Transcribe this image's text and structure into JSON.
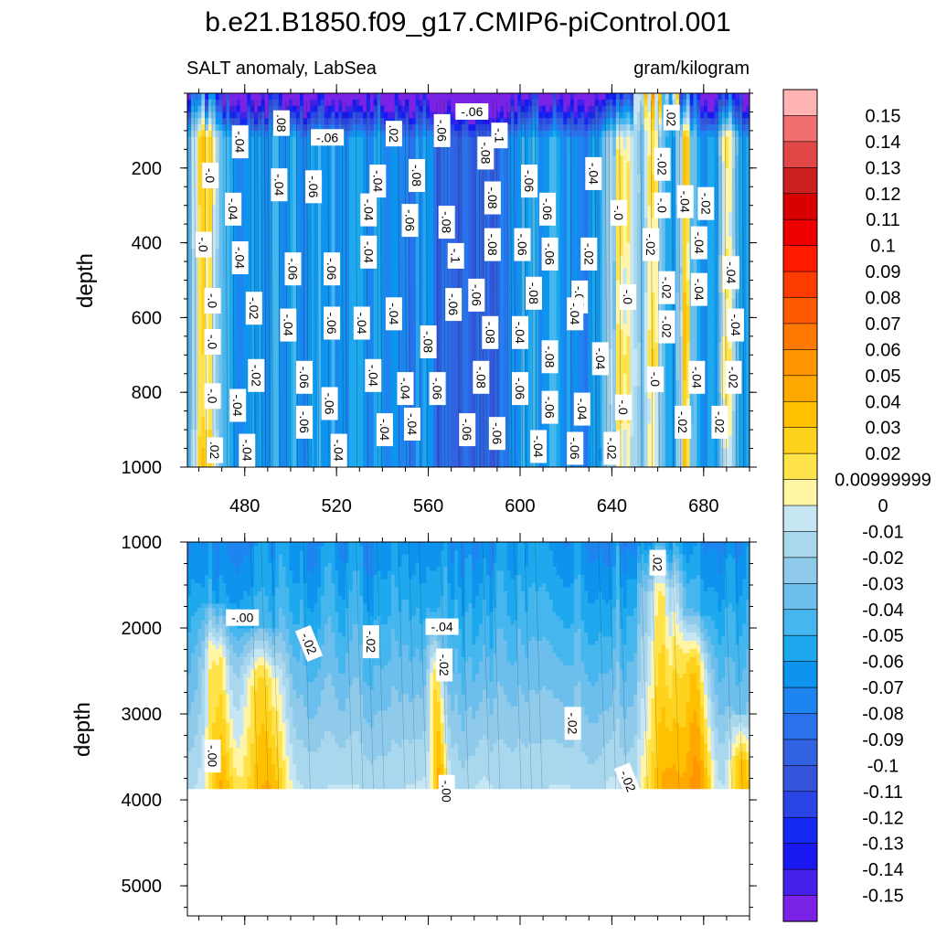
{
  "chart_data": {
    "type": "heatmap",
    "title": "b.e21.B1850.f09_g17.CMIP6-piControl.001",
    "subtitle_left": "SALT anomaly, LabSea",
    "subtitle_right": "gram/kilogram",
    "xlabel": "",
    "xlim": [
      455,
      700
    ],
    "x_ticks": [
      "480",
      "520",
      "560",
      "600",
      "640",
      "680"
    ],
    "x_tick_values": [
      480,
      520,
      560,
      600,
      640,
      680
    ],
    "panels": [
      {
        "name": "upper",
        "ylabel": "depth",
        "ylim": [
          0,
          1000
        ],
        "y_ticks": [
          "200",
          "400",
          "600",
          "800",
          "1000"
        ],
        "y_tick_values": [
          200,
          400,
          600,
          800,
          1000
        ],
        "contour_labels": [
          {
            "text": "-.06",
            "x": 579,
            "y": 49
          },
          {
            "text": ".02",
            "x": 666,
            "y": 65,
            "rot": 90
          },
          {
            "text": "-.04",
            "x": 478,
            "y": 130,
            "rot": 90
          },
          {
            "text": ".08",
            "x": 496,
            "y": 80,
            "rot": 90
          },
          {
            "text": "-.06",
            "x": 516,
            "y": 118
          },
          {
            "text": ".02",
            "x": 545,
            "y": 108,
            "rot": 90
          },
          {
            "text": "-.06",
            "x": 566,
            "y": 100,
            "rot": 90
          },
          {
            "text": "-.1",
            "x": 591,
            "y": 113,
            "rot": 90
          },
          {
            "text": "-.08",
            "x": 585,
            "y": 160,
            "rot": 90
          },
          {
            "text": "-.0",
            "x": 465,
            "y": 220,
            "rot": 90
          },
          {
            "text": "-.04",
            "x": 495,
            "y": 245,
            "rot": 90
          },
          {
            "text": "-.06",
            "x": 510,
            "y": 250,
            "rot": 90
          },
          {
            "text": "-.04",
            "x": 538,
            "y": 235,
            "rot": 90
          },
          {
            "text": "-.08",
            "x": 555,
            "y": 220,
            "rot": 90
          },
          {
            "text": "-.06",
            "x": 604,
            "y": 235,
            "rot": 90
          },
          {
            "text": "-.04",
            "x": 632,
            "y": 215,
            "rot": 90
          },
          {
            "text": "-.02",
            "x": 662,
            "y": 190,
            "rot": 90
          },
          {
            "text": "-.04",
            "x": 475,
            "y": 310,
            "rot": 90
          },
          {
            "text": "-.04",
            "x": 534,
            "y": 312,
            "rot": 90
          },
          {
            "text": "-.06",
            "x": 552,
            "y": 340,
            "rot": 90
          },
          {
            "text": "-.08",
            "x": 568,
            "y": 345,
            "rot": 90
          },
          {
            "text": "-.08",
            "x": 588,
            "y": 280,
            "rot": 90
          },
          {
            "text": "-.06",
            "x": 612,
            "y": 310,
            "rot": 90
          },
          {
            "text": "-.0",
            "x": 643,
            "y": 320,
            "rot": 90
          },
          {
            "text": "-.0",
            "x": 662,
            "y": 300,
            "rot": 90
          },
          {
            "text": "-.04",
            "x": 672,
            "y": 290,
            "rot": 90
          },
          {
            "text": "-.02",
            "x": 681,
            "y": 295,
            "rot": 90
          },
          {
            "text": "-.0",
            "x": 462,
            "y": 405,
            "rot": 90
          },
          {
            "text": "-.04",
            "x": 478,
            "y": 440,
            "rot": 90
          },
          {
            "text": "-.04",
            "x": 534,
            "y": 425,
            "rot": 90
          },
          {
            "text": "-.1",
            "x": 572,
            "y": 435,
            "rot": 90
          },
          {
            "text": "-.08",
            "x": 588,
            "y": 405,
            "rot": 90
          },
          {
            "text": "-.06",
            "x": 601,
            "y": 405,
            "rot": 90
          },
          {
            "text": "-.06",
            "x": 613,
            "y": 430,
            "rot": 90
          },
          {
            "text": "-.02",
            "x": 630,
            "y": 430,
            "rot": 90
          },
          {
            "text": "-.02",
            "x": 657,
            "y": 405,
            "rot": 90
          },
          {
            "text": "-.04",
            "x": 678,
            "y": 400,
            "rot": 90
          },
          {
            "text": "-.06",
            "x": 501,
            "y": 470,
            "rot": 90
          },
          {
            "text": "-.06",
            "x": 518,
            "y": 470,
            "rot": 90
          },
          {
            "text": "-.04",
            "x": 692,
            "y": 480,
            "rot": 90
          },
          {
            "text": "-.0",
            "x": 466,
            "y": 555,
            "rot": 90
          },
          {
            "text": "-.02",
            "x": 484,
            "y": 575,
            "rot": 90
          },
          {
            "text": "-.06",
            "x": 581,
            "y": 540,
            "rot": 90
          },
          {
            "text": "-.08",
            "x": 606,
            "y": 535,
            "rot": 90
          },
          {
            "text": "-.06",
            "x": 626,
            "y": 545,
            "rot": 90
          },
          {
            "text": "-.0",
            "x": 647,
            "y": 545,
            "rot": 90
          },
          {
            "text": "-.02",
            "x": 664,
            "y": 520,
            "rot": 90
          },
          {
            "text": "-.04",
            "x": 678,
            "y": 525,
            "rot": 90
          },
          {
            "text": "-.04",
            "x": 499,
            "y": 620,
            "rot": 90
          },
          {
            "text": "-.06",
            "x": 518,
            "y": 615,
            "rot": 90
          },
          {
            "text": "-.04",
            "x": 531,
            "y": 615,
            "rot": 90
          },
          {
            "text": "-.04",
            "x": 545,
            "y": 590,
            "rot": 90
          },
          {
            "text": "-.06",
            "x": 571,
            "y": 565,
            "rot": 90
          },
          {
            "text": "-.08",
            "x": 587,
            "y": 640,
            "rot": 90
          },
          {
            "text": "-.04",
            "x": 600,
            "y": 640,
            "rot": 90
          },
          {
            "text": "-.04",
            "x": 624,
            "y": 590,
            "rot": 90
          },
          {
            "text": "-.02",
            "x": 664,
            "y": 625,
            "rot": 90
          },
          {
            "text": "-.04",
            "x": 694,
            "y": 620,
            "rot": 90
          },
          {
            "text": "-.0",
            "x": 466,
            "y": 665,
            "rot": 90
          },
          {
            "text": "-.08",
            "x": 560,
            "y": 665,
            "rot": 90
          },
          {
            "text": "-.08",
            "x": 613,
            "y": 705,
            "rot": 90
          },
          {
            "text": "-.04",
            "x": 635,
            "y": 710,
            "rot": 90
          },
          {
            "text": "-.02",
            "x": 485,
            "y": 755,
            "rot": 90
          },
          {
            "text": "-.06",
            "x": 506,
            "y": 760,
            "rot": 90
          },
          {
            "text": "-.04",
            "x": 536,
            "y": 755,
            "rot": 90
          },
          {
            "text": "-.04",
            "x": 550,
            "y": 790,
            "rot": 90
          },
          {
            "text": "-.06",
            "x": 564,
            "y": 790,
            "rot": 90
          },
          {
            "text": "-.08",
            "x": 583,
            "y": 760,
            "rot": 90
          },
          {
            "text": "-.06",
            "x": 600,
            "y": 790,
            "rot": 90
          },
          {
            "text": "-.0",
            "x": 659,
            "y": 765,
            "rot": 90
          },
          {
            "text": "-.04",
            "x": 677,
            "y": 760,
            "rot": 90
          },
          {
            "text": "-.02",
            "x": 693,
            "y": 760,
            "rot": 90
          },
          {
            "text": "-.0",
            "x": 466,
            "y": 810,
            "rot": 90
          },
          {
            "text": "-.04",
            "x": 477,
            "y": 835,
            "rot": 90
          },
          {
            "text": "-.06",
            "x": 517,
            "y": 830,
            "rot": 90
          },
          {
            "text": "-.06",
            "x": 613,
            "y": 840,
            "rot": 90
          },
          {
            "text": "-.04",
            "x": 627,
            "y": 845,
            "rot": 90
          },
          {
            "text": "-.0",
            "x": 645,
            "y": 840,
            "rot": 90
          },
          {
            "text": "-.02",
            "x": 671,
            "y": 880,
            "rot": 90
          },
          {
            "text": "-.02",
            "x": 687,
            "y": 880,
            "rot": 90
          },
          {
            "text": "-.06",
            "x": 506,
            "y": 880,
            "rot": 90
          },
          {
            "text": "-.04",
            "x": 541,
            "y": 900,
            "rot": 90
          },
          {
            "text": "-.06",
            "x": 577,
            "y": 900,
            "rot": 90
          },
          {
            "text": "-.06",
            "x": 590,
            "y": 910,
            "rot": 90
          },
          {
            "text": "-.04",
            "x": 521,
            "y": 955,
            "rot": 90
          },
          {
            "text": "-.04",
            "x": 608,
            "y": 945,
            "rot": 90
          },
          {
            "text": "-.06",
            "x": 624,
            "y": 950,
            "rot": 90
          },
          {
            "text": "-.02",
            "x": 640,
            "y": 950,
            "rot": 90
          },
          {
            "text": ".02",
            "x": 467,
            "y": 955,
            "rot": 90
          },
          {
            "text": "-.04",
            "x": 481,
            "y": 955,
            "rot": 90
          },
          {
            "text": "-.04",
            "x": 553,
            "y": 885,
            "rot": 90
          }
        ]
      },
      {
        "name": "lower",
        "ylabel": "depth",
        "ylim": [
          1000,
          5350
        ],
        "y_ticks": [
          "1000",
          "2000",
          "3000",
          "4000",
          "5000"
        ],
        "y_tick_values": [
          1000,
          2000,
          3000,
          4000,
          5000
        ],
        "data_bottom": 3870,
        "contour_labels": [
          {
            "text": "-.00",
            "x": 479,
            "y": 1880
          },
          {
            "text": "-.02",
            "x": 508,
            "y": 2180,
            "rot": 68
          },
          {
            "text": "-.02",
            "x": 535,
            "y": 2160,
            "rot": 90
          },
          {
            "text": "-.04",
            "x": 566,
            "y": 1985
          },
          {
            "text": "-.02",
            "x": 567,
            "y": 2430,
            "rot": 90
          },
          {
            "text": ".02",
            "x": 660,
            "y": 1240,
            "rot": 90
          },
          {
            "text": "-.02",
            "x": 623,
            "y": 3110,
            "rot": 90
          },
          {
            "text": "-.00",
            "x": 466,
            "y": 3490,
            "rot": 90
          },
          {
            "text": "-.00",
            "x": 568,
            "y": 3900,
            "rot": 90
          },
          {
            "text": "-.02",
            "x": 647,
            "y": 3780,
            "rot": 68
          }
        ]
      }
    ],
    "colorbar": {
      "levels": [
        "0.15",
        "0.14",
        "0.13",
        "0.12",
        "0.11",
        "0.1",
        "0.09",
        "0.08",
        "0.07",
        "0.06",
        "0.05",
        "0.04",
        "0.03",
        "0.02",
        "0.00999999",
        "0",
        "-0.01",
        "-0.02",
        "-0.03",
        "-0.04",
        "-0.05",
        "-0.06",
        "-0.07",
        "-0.08",
        "-0.09",
        "-0.1",
        "-0.11",
        "-0.12",
        "-0.13",
        "-0.14",
        "-0.15"
      ],
      "colors": [
        "#ffb3b3",
        "#f07070",
        "#e04848",
        "#cc2020",
        "#d80000",
        "#ee0000",
        "#ff1a00",
        "#ff3c00",
        "#ff5a00",
        "#ff7800",
        "#ff9600",
        "#ffa800",
        "#ffc000",
        "#ffd21e",
        "#ffe34a",
        "#fff5a5",
        "#c6e6f4",
        "#a9d7ee",
        "#8fcaea",
        "#6cbeec",
        "#45b6ee",
        "#1ea8ee",
        "#0c94ee",
        "#1e84f0",
        "#2a72ec",
        "#3062e2",
        "#3454dc",
        "#2a44e6",
        "#1428f2",
        "#1a18f0",
        "#4420ea",
        "#7a22e6"
      ]
    }
  }
}
